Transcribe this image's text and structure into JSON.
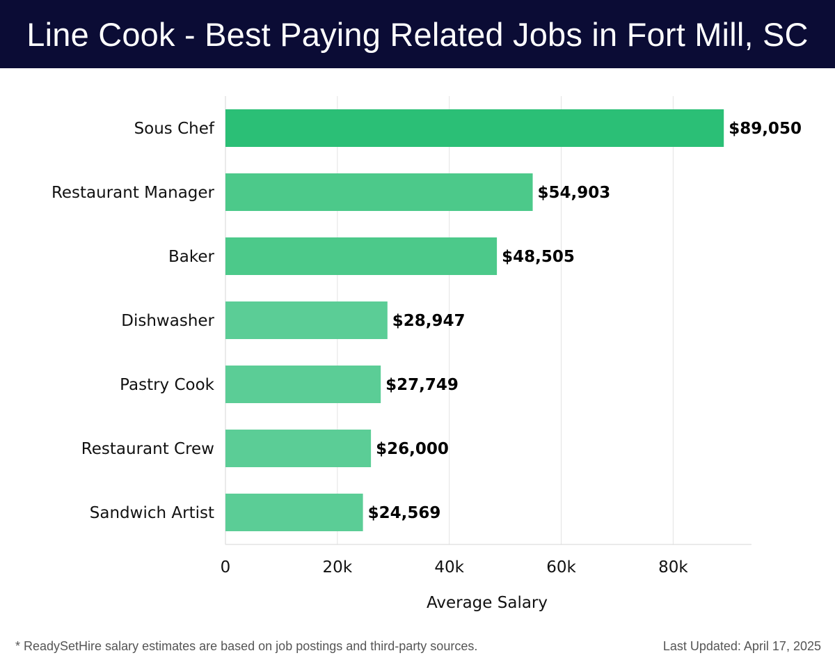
{
  "header": {
    "title": "Line Cook - Best Paying Related Jobs in Fort Mill, SC"
  },
  "chart_data": {
    "type": "bar",
    "orientation": "horizontal",
    "categories": [
      "Sous Chef",
      "Restaurant Manager",
      "Baker",
      "Dishwasher",
      "Pastry Cook",
      "Restaurant Crew",
      "Sandwich Artist"
    ],
    "values": [
      89050,
      54903,
      48505,
      28947,
      27749,
      26000,
      24569
    ],
    "value_labels": [
      "$89,050",
      "$54,903",
      "$48,505",
      "$28,947",
      "$27,749",
      "$26,000",
      "$24,569"
    ],
    "xlabel": "Average Salary",
    "ylabel": "",
    "xlim": [
      0,
      94000
    ],
    "xticks": [
      0,
      20000,
      40000,
      60000,
      80000
    ],
    "xtick_labels": [
      "0",
      "20k",
      "40k",
      "60k",
      "80k"
    ],
    "grid": true,
    "colors": {
      "top_bar": "#2bbf76",
      "bar": "#4cc98a",
      "bar_light": "#5bcd96"
    }
  },
  "footer": {
    "note": "* ReadySetHire salary estimates are based on job postings and third-party sources.",
    "updated": "Last Updated: April 17, 2025"
  }
}
